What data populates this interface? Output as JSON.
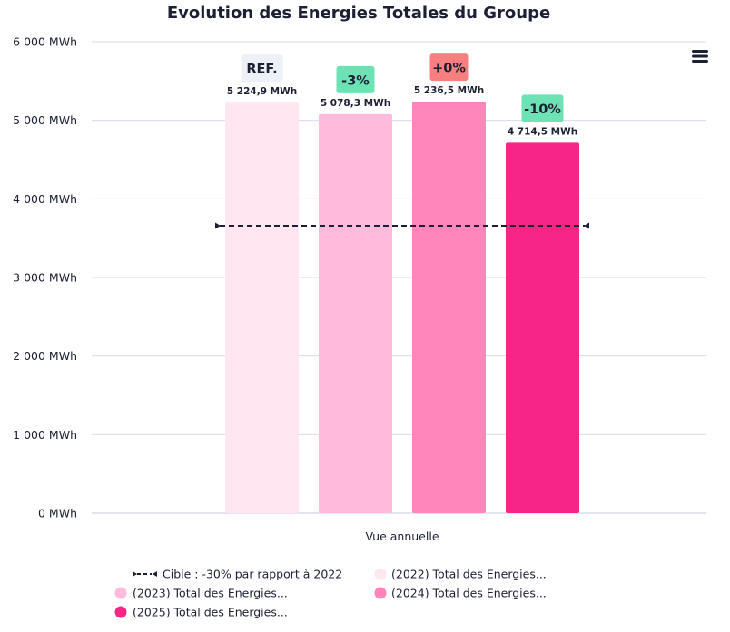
{
  "chart_data": {
    "type": "bar",
    "title": "Evolution des Energies Totales du Groupe",
    "xlabel": "Vue annuelle",
    "ylabel": "",
    "ylim": [
      0,
      6000
    ],
    "grid": true,
    "unit": "MWh",
    "yticks": [
      {
        "value": 0,
        "label": "0 MWh"
      },
      {
        "value": 1000,
        "label": "1 000 MWh"
      },
      {
        "value": 2000,
        "label": "2 000 MWh"
      },
      {
        "value": 3000,
        "label": "3 000 MWh"
      },
      {
        "value": 4000,
        "label": "4 000 MWh"
      },
      {
        "value": 5000,
        "label": "5 000 MWh"
      },
      {
        "value": 6000,
        "label": "6 000 MWh"
      }
    ],
    "categories": [
      "Vue annuelle"
    ],
    "series": [
      {
        "name": "(2022) Total des Energies...",
        "year": "2022",
        "values": [
          5224.9
        ],
        "value_label": "5 224,9 MWh",
        "color": "#ffe6f1",
        "badge": "REF.",
        "badge_color": "#eef0f8"
      },
      {
        "name": "(2023) Total des Energies...",
        "year": "2023",
        "values": [
          5078.3
        ],
        "value_label": "5 078,3 MWh",
        "color": "#ffbbdb",
        "badge": "-3%",
        "badge_color": "#6de2b4"
      },
      {
        "name": "(2024) Total des Energies...",
        "year": "2024",
        "values": [
          5236.5
        ],
        "value_label": "5 236,5 MWh",
        "color": "#ff86ba",
        "badge": "+0%",
        "badge_color": "#f77f7f"
      },
      {
        "name": "(2025) Total des Energies...",
        "year": "2025",
        "values": [
          4714.5
        ],
        "value_label": "4 714,5 MWh",
        "color": "#f72585",
        "badge": "-10%",
        "badge_color": "#6de2b4"
      }
    ],
    "target_line": {
      "name": "Cible : -30% par rapport à 2022",
      "value": 3657.4,
      "style": "dashed",
      "color": "#1c2033"
    },
    "legend": {
      "placement": "bottom",
      "items": [
        {
          "label": "Cible : -30% par rapport à 2022",
          "type": "line"
        },
        {
          "label": "(2022) Total des Energies...",
          "type": "dot",
          "color": "#ffe6f1"
        },
        {
          "label": "(2023) Total des Energies...",
          "type": "dot",
          "color": "#ffbbdb"
        },
        {
          "label": "(2024) Total des Energies...",
          "type": "dot",
          "color": "#ff86ba"
        },
        {
          "label": "(2025) Total des Energies...",
          "type": "dot",
          "color": "#f72585"
        }
      ]
    }
  },
  "colors": {
    "text": "#1c2033",
    "grid": "#d8dcec"
  },
  "menu": {
    "icon": "hamburger-menu-icon"
  }
}
